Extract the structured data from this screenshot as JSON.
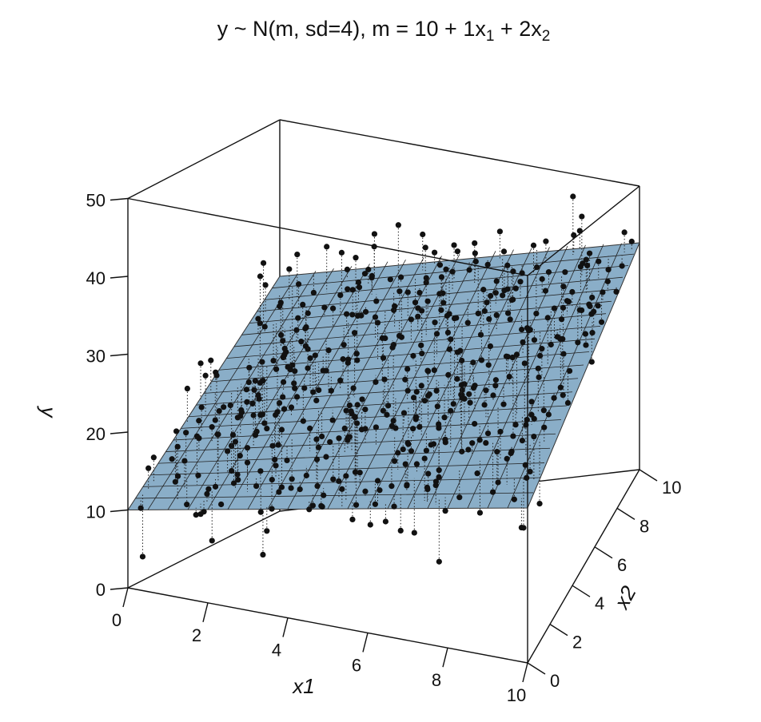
{
  "chart_data": {
    "type": "scatter",
    "title": "y ~ N(m, sd=4), m = 10 + 1x1 + 2x2",
    "xlabel": "x1",
    "ylabel": "y",
    "zlabel": "x2",
    "x1_ticks": [
      "0",
      "2",
      "4",
      "6",
      "8",
      "10"
    ],
    "x2_ticks": [
      "0",
      "2",
      "4",
      "6",
      "8",
      "10"
    ],
    "y_ticks": [
      "0",
      "10",
      "20",
      "30",
      "40",
      "50"
    ],
    "x1_range": [
      0,
      10
    ],
    "x2_range": [
      0,
      10
    ],
    "y_range": [
      0,
      50
    ],
    "plane": {
      "intercept": 10,
      "b1": 1,
      "b2": 2,
      "color": "#8aaec8",
      "grid_divisions": 20
    },
    "noise_sd": 4,
    "n_points_approx": 500,
    "point_color": "#111111",
    "residual_lines": "dotted",
    "points_note": "approximately 500 points; x1 and x2 uniform on [0,10]"
  }
}
